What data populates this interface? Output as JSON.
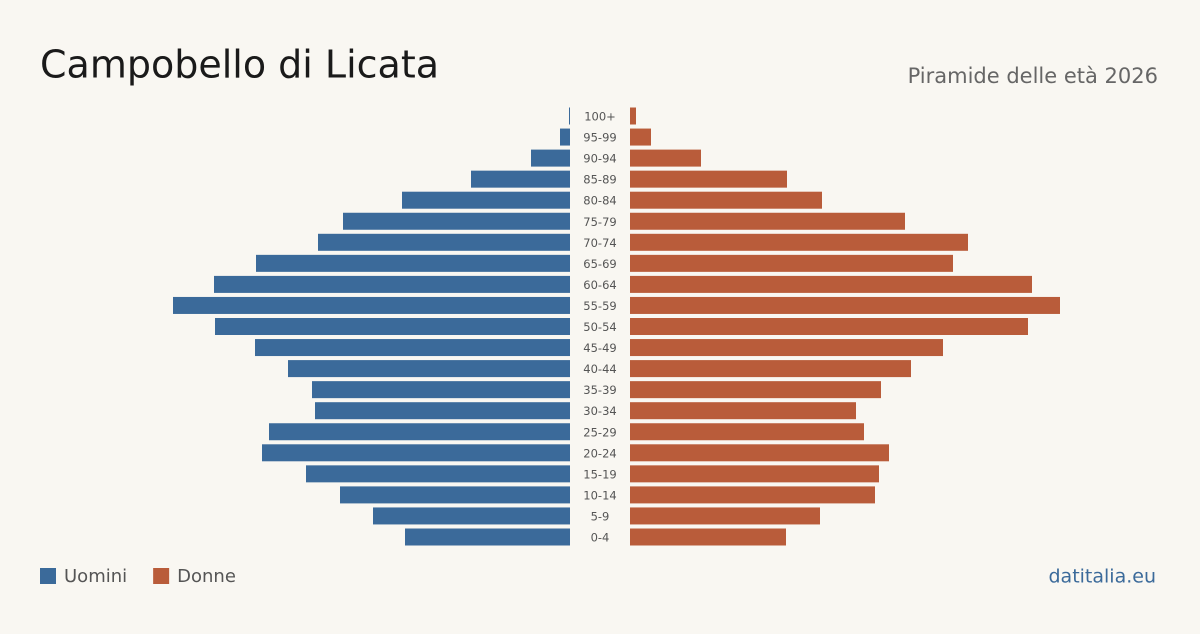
{
  "chart_data": {
    "type": "pyramid",
    "title": "Campobello di Licata",
    "subtitle": "Piramide delle età 2026",
    "source": "datitalia.eu",
    "categories": [
      "100+",
      "95-99",
      "90-94",
      "85-89",
      "80-84",
      "75-79",
      "70-74",
      "65-69",
      "60-64",
      "55-59",
      "50-54",
      "45-49",
      "40-44",
      "35-39",
      "30-34",
      "25-29",
      "20-24",
      "15-19",
      "10-14",
      "5-9",
      "0-4"
    ],
    "xlim": [
      0,
      440
    ],
    "legend": "bottom-left",
    "series": [
      {
        "name": "Uomini",
        "color": "#3b6a9a",
        "side": "left",
        "values": [
          1,
          10,
          39,
          99,
          168,
          227,
          252,
          314,
          356,
          397,
          355,
          315,
          282,
          258,
          255,
          301,
          308,
          264,
          230,
          197,
          165
        ]
      },
      {
        "name": "Donne",
        "color": "#b95c3a",
        "side": "right",
        "values": [
          6,
          21,
          71,
          157,
          192,
          275,
          338,
          323,
          402,
          430,
          398,
          313,
          281,
          251,
          226,
          234,
          259,
          249,
          245,
          190,
          156
        ]
      }
    ]
  }
}
